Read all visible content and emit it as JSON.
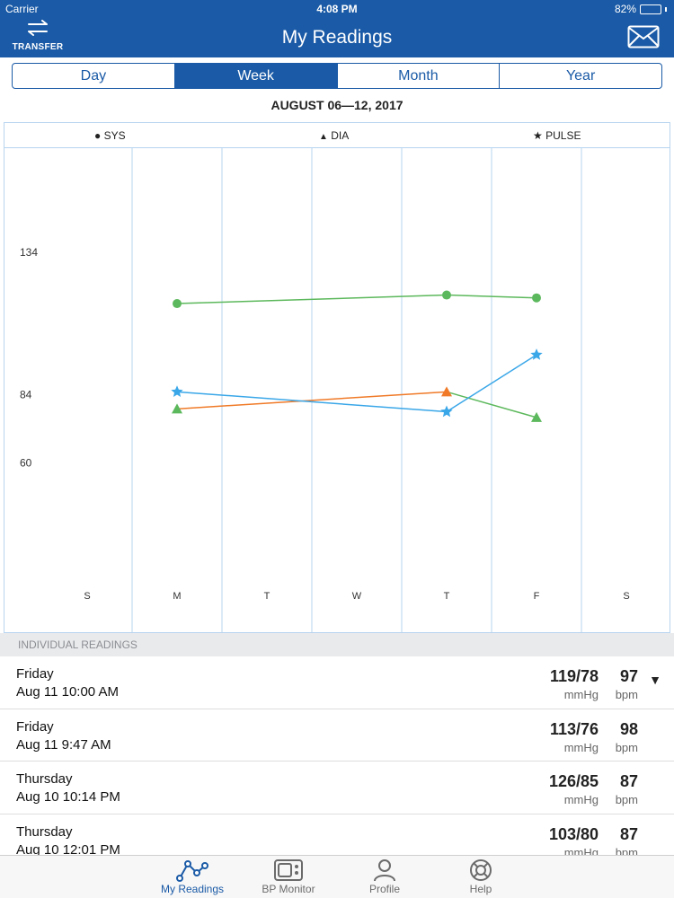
{
  "status_bar": {
    "carrier": "Carrier",
    "time": "4:08 PM",
    "battery": "82%",
    "battery_level": 0.82
  },
  "header": {
    "title": "My Readings",
    "transfer_label": "TRANSFER"
  },
  "segments": [
    {
      "label": "Day",
      "active": false
    },
    {
      "label": "Week",
      "active": true
    },
    {
      "label": "Month",
      "active": false
    },
    {
      "label": "Year",
      "active": false
    }
  ],
  "date_range": "AUGUST 06—12, 2017",
  "legend": [
    {
      "symbol": "●",
      "label": "SYS"
    },
    {
      "symbol": "▲",
      "label": "DIA"
    },
    {
      "symbol": "★",
      "label": "PULSE"
    }
  ],
  "colors": {
    "header": "#1a5aa6",
    "sys_line": "#5cb85c",
    "dia_line": "#f07a28",
    "pulse_line": "#3aa7e8",
    "grid": "#b7d4ef"
  },
  "chart_data": {
    "type": "line",
    "categories": [
      "S",
      "M",
      "T",
      "W",
      "T",
      "F",
      "S"
    ],
    "y_ticks": [
      60,
      84,
      134
    ],
    "series": [
      {
        "name": "SYS",
        "marker": "circle",
        "points": [
          {
            "x": 1,
            "y": 116
          },
          {
            "x": 4,
            "y": 119
          },
          {
            "x": 5,
            "y": 118
          }
        ]
      },
      {
        "name": "DIA",
        "marker": "triangle",
        "points": [
          {
            "x": 1,
            "y": 79
          },
          {
            "x": 4,
            "y": 85
          },
          {
            "x": 5,
            "y": 76
          }
        ]
      },
      {
        "name": "PULSE",
        "marker": "star",
        "points": [
          {
            "x": 1,
            "y": 85
          },
          {
            "x": 4,
            "y": 78
          },
          {
            "x": 5,
            "y": 98
          }
        ]
      }
    ]
  },
  "readings_header": "INDIVIDUAL READINGS",
  "readings": [
    {
      "day": "Friday",
      "datetime": "Aug 11 10:00 AM",
      "bp": "119/78",
      "bp_unit": "mmHg",
      "pulse": "97",
      "pulse_unit": "bpm",
      "expanded": true
    },
    {
      "day": "Friday",
      "datetime": "Aug 11 9:47 AM",
      "bp": "113/76",
      "bp_unit": "mmHg",
      "pulse": "98",
      "pulse_unit": "bpm"
    },
    {
      "day": "Thursday",
      "datetime": "Aug 10 10:14 PM",
      "bp": "126/85",
      "bp_unit": "mmHg",
      "pulse": "87",
      "pulse_unit": "bpm"
    },
    {
      "day": "Thursday",
      "datetime": "Aug 10 12:01 PM",
      "bp": "103/80",
      "bp_unit": "mmHg",
      "pulse": "87",
      "pulse_unit": "bpm"
    }
  ],
  "tabs": [
    {
      "label": "My Readings",
      "icon": "chart-line-icon",
      "active": true
    },
    {
      "label": "BP Monitor",
      "icon": "monitor-device-icon",
      "active": false
    },
    {
      "label": "Profile",
      "icon": "person-icon",
      "active": false
    },
    {
      "label": "Help",
      "icon": "lifebuoy-icon",
      "active": false
    }
  ]
}
